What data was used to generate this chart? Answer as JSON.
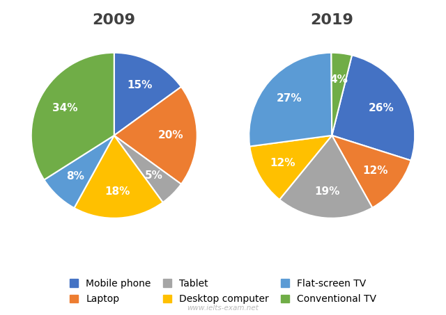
{
  "title_2009": "2009",
  "title_2019": "2019",
  "categories": [
    "Mobile phone",
    "Laptop",
    "Tablet",
    "Desktop computer",
    "Flat-screen TV",
    "Conventional TV"
  ],
  "colors": [
    "#4472C4",
    "#ED7D31",
    "#A5A5A5",
    "#FFC000",
    "#5B9BD5",
    "#70AD47"
  ],
  "values_2009": [
    15,
    20,
    5,
    18,
    8,
    34
  ],
  "values_2019": [
    26,
    12,
    19,
    12,
    27,
    4
  ],
  "startangle_2009": 90,
  "startangle_2019": 76,
  "background_color": "#FFFFFF",
  "title_fontsize": 16,
  "title_color": "#404040",
  "label_fontsize": 11,
  "legend_fontsize": 10,
  "watermark": "www.ielts-exam.net"
}
